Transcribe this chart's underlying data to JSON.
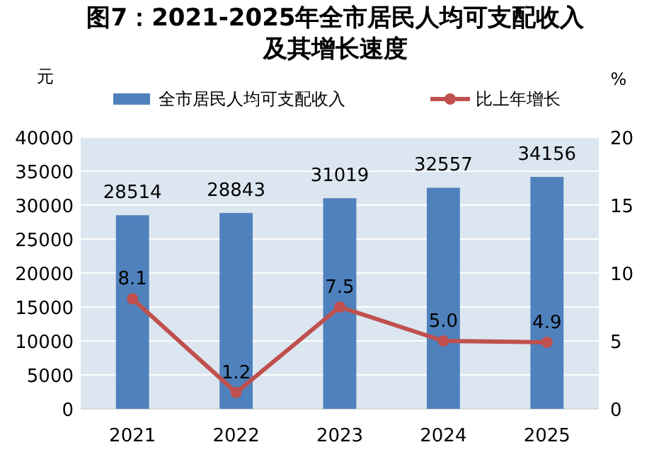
{
  "chart_data": {
    "type": "bar",
    "title": "图7：2021-2025年全市居民人均可支配收入及其增长速度",
    "categories": [
      "2021",
      "2022",
      "2023",
      "2024",
      "2025"
    ],
    "series": [
      {
        "name": "全市居民人均可支配收入",
        "color": "#4f81bd",
        "values": [
          28514,
          28843,
          31019,
          32557,
          34156
        ]
      },
      {
        "name": "比上年增长",
        "type": "line",
        "axis": "y2",
        "color": "#c0504d",
        "marker": "circle",
        "line_style": "solid",
        "values": [
          8.1,
          1.2,
          7.5,
          5.0,
          4.9
        ],
        "value_labels": [
          "8.1",
          "1.2",
          "7.5",
          "5.0",
          "4.9"
        ]
      }
    ],
    "ylabel": "元",
    "y2label": "%",
    "ylim": [
      0,
      40000
    ],
    "yticks": [
      0,
      5000,
      10000,
      15000,
      20000,
      25000,
      30000,
      35000,
      40000
    ],
    "y2lim": [
      0,
      20
    ],
    "y2ticks": [
      0,
      5,
      10,
      15,
      20
    ],
    "data_labels": true,
    "legend": "top",
    "grid": "y"
  }
}
